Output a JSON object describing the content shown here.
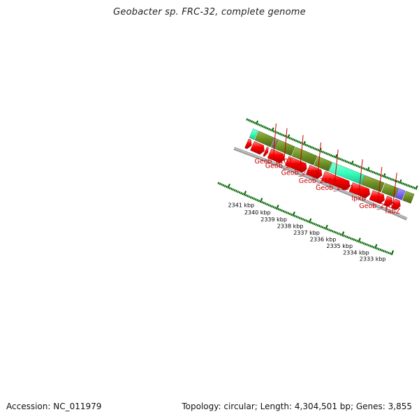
{
  "title": "Geobacter sp. FRC-32, complete genome",
  "footer": {
    "accession": "Accession: NC_011979",
    "summary": "Topology: circular; Length: 4,304,501 bp; Genes: 3,855"
  },
  "colors": {
    "forward_cds": "#ee0000",
    "gene": "#6b8e23",
    "rna": "#33ffbb",
    "pseudo": "#7b68ee",
    "other": "#808080",
    "backbone": "#888888",
    "ruler": "#006400",
    "label": "#cc0000"
  },
  "ruler": {
    "unit": "kbp",
    "labels": [
      "2341 kbp",
      "2340 kbp",
      "2339 kbp",
      "2338 kbp",
      "2337 kbp",
      "2336 kbp",
      "2335 kbp",
      "2334 kbp",
      "2333 kbp"
    ]
  },
  "features": {
    "forward_cds": [
      {
        "start": 2342.05,
        "end": 2341.75
      },
      {
        "start": 2341.7,
        "end": 2340.95
      },
      {
        "start": 2340.9,
        "end": 2340.72
      },
      {
        "start": 2340.62,
        "end": 2339.7
      },
      {
        "start": 2339.53,
        "end": 2338.3
      },
      {
        "start": 2338.22,
        "end": 2337.35
      },
      {
        "start": 2337.27,
        "end": 2335.62
      },
      {
        "start": 2335.55,
        "end": 2334.38
      },
      {
        "start": 2334.3,
        "end": 2333.48
      },
      {
        "start": 2333.42,
        "end": 2332.98
      },
      {
        "start": 2332.94,
        "end": 2332.5
      }
    ],
    "genes": [
      {
        "start": 2342.05,
        "end": 2341.75,
        "kind": "rna"
      },
      {
        "start": 2341.7,
        "end": 2340.72,
        "kind": "gene"
      },
      {
        "start": 2340.68,
        "end": 2340.5,
        "kind": "other"
      },
      {
        "start": 2340.48,
        "end": 2339.42,
        "kind": "gene"
      },
      {
        "start": 2339.37,
        "end": 2338.03,
        "kind": "gene"
      },
      {
        "start": 2337.98,
        "end": 2337.1,
        "kind": "gene"
      },
      {
        "start": 2337.06,
        "end": 2335.07,
        "kind": "rna"
      },
      {
        "start": 2335.04,
        "end": 2333.85,
        "kind": "gene"
      },
      {
        "start": 2333.79,
        "end": 2332.99,
        "kind": "gene"
      },
      {
        "start": 2332.96,
        "end": 2332.55,
        "kind": "pseudo"
      },
      {
        "start": 2332.5,
        "end": 2332.0,
        "kind": "gene"
      }
    ],
    "labels": [
      {
        "name": "Geob_2107",
        "pos": 2340.96
      },
      {
        "name": "Geob_2106",
        "pos": 2340.27
      },
      {
        "name": "Geob_2105",
        "pos": 2339.25
      },
      {
        "name": "Geob_2104",
        "pos": 2338.13
      },
      {
        "name": "Geob_2103",
        "pos": 2337.05
      },
      {
        "name": "lpxB",
        "pos": 2335.52
      },
      {
        "name": "Geob_2101",
        "pos": 2334.31
      },
      {
        "name": "fabZ",
        "pos": 2333.38
      }
    ]
  }
}
